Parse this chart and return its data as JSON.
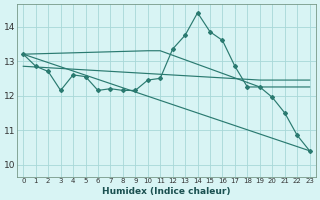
{
  "xlabel": "Humidex (Indice chaleur)",
  "bg_color": "#d8f4f4",
  "grid_color": "#a8d8d8",
  "line_color": "#2a7a70",
  "x_ticks": [
    0,
    1,
    2,
    3,
    4,
    5,
    6,
    7,
    8,
    9,
    10,
    11,
    12,
    13,
    14,
    15,
    16,
    17,
    18,
    19,
    20,
    21,
    22,
    23
  ],
  "y_ticks": [
    10,
    11,
    12,
    13,
    14
  ],
  "ylim": [
    9.65,
    14.65
  ],
  "xlim": [
    -0.5,
    23.5
  ],
  "line1_x": [
    0,
    1,
    2,
    3,
    4,
    5,
    6,
    7,
    8,
    9,
    10,
    11,
    12,
    13,
    14,
    15,
    16,
    17,
    18,
    19,
    20,
    21,
    22,
    23
  ],
  "line1_y": [
    13.2,
    12.85,
    12.7,
    12.15,
    12.6,
    12.55,
    12.15,
    12.2,
    12.15,
    12.15,
    12.45,
    12.5,
    13.35,
    13.75,
    14.4,
    13.85,
    13.6,
    12.85,
    12.25,
    12.25,
    11.95,
    11.5,
    10.85,
    10.4
  ],
  "line2_x": [
    0,
    10,
    11,
    19,
    23
  ],
  "line2_y": [
    13.2,
    13.3,
    13.3,
    12.25,
    12.25
  ],
  "line3_x": [
    0,
    23
  ],
  "line3_y": [
    13.2,
    10.4
  ],
  "line4_x": [
    0,
    19,
    23
  ],
  "line4_y": [
    12.85,
    12.45,
    12.45
  ]
}
